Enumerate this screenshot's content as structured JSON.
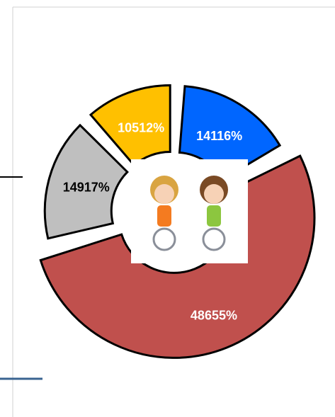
{
  "chart_data": {
    "type": "pie",
    "donut": true,
    "values": [
      14116,
      48655,
      14917,
      10512
    ],
    "value_labels": [
      "14116%",
      "48655%",
      "14917%",
      "10512%"
    ],
    "colors": [
      "#0066ff",
      "#c0504d",
      "#bfbfbf",
      "#ffc000"
    ],
    "label_colors": [
      "#ffffff",
      "#ffffff",
      "#000000",
      "#ffffff"
    ]
  }
}
